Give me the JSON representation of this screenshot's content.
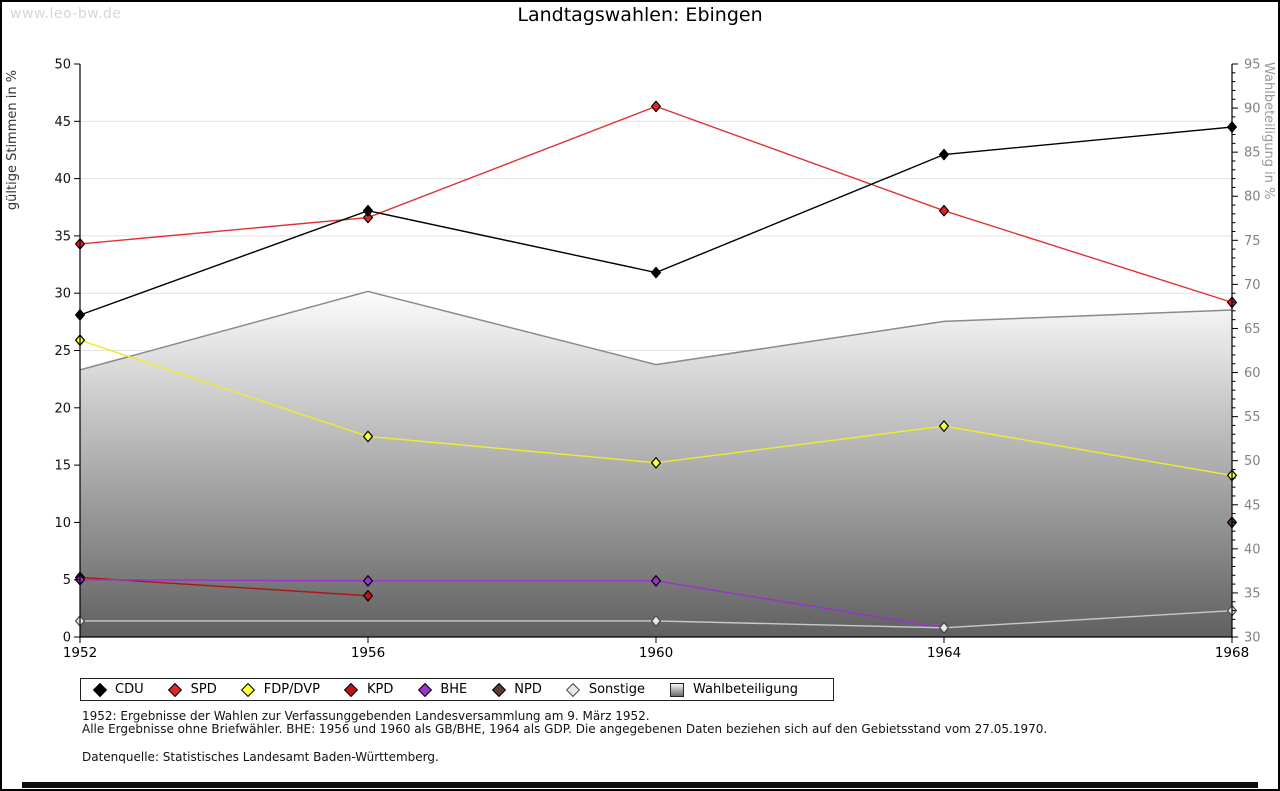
{
  "header": {
    "watermark": "www.leo-bw.de",
    "title": "Landtagswahlen: Ebingen"
  },
  "chart_data": {
    "type": "line",
    "x": [
      1952,
      1956,
      1960,
      1964,
      1968
    ],
    "left_axis": {
      "label": "gültige Stimmen in %",
      "min": 0,
      "max": 50,
      "step": 5
    },
    "right_axis": {
      "label": "Wahlbeteiligung in %",
      "min": 30,
      "max": 95,
      "step": 5,
      "minor_step": 1
    },
    "grid": true,
    "legend_position": "bottom",
    "series": [
      {
        "name": "Wahlbeteiligung",
        "type": "area",
        "axis": "right",
        "line_color": "#8a8a8a",
        "fill_top": "#fcfcfc",
        "fill_bottom": "#606060",
        "values": [
          60.3,
          69.2,
          60.9,
          65.8,
          67.1
        ]
      },
      {
        "name": "KPD",
        "type": "line",
        "axis": "left",
        "line_color": "#b11414",
        "marker_fill": "#c01414",
        "marker_stroke": "#000000",
        "values": [
          5.2,
          3.6,
          null,
          null,
          null
        ]
      },
      {
        "name": "BHE",
        "type": "line",
        "axis": "left",
        "line_color": "#9933cc",
        "marker_fill": "#9933cc",
        "marker_stroke": "#000000",
        "values": [
          5.0,
          4.9,
          4.9,
          0.8,
          null
        ]
      },
      {
        "name": "Sonstige",
        "type": "line",
        "axis": "left",
        "line_color": "#c9c9c9",
        "marker_fill": "#e8e8e8",
        "marker_stroke": "#4a4a4a",
        "values": [
          1.4,
          null,
          1.4,
          0.8,
          2.3
        ]
      },
      {
        "name": "NPD",
        "type": "line",
        "axis": "left",
        "line_color": "#5a3c30",
        "marker_fill": "#5a3c30",
        "marker_stroke": "#000000",
        "values": [
          null,
          null,
          null,
          null,
          10.0
        ]
      },
      {
        "name": "FDP/DVP",
        "type": "line",
        "axis": "left",
        "line_color": "#ecec30",
        "marker_fill": "#ffff38",
        "marker_stroke": "#000000",
        "values": [
          25.9,
          17.5,
          15.2,
          18.4,
          14.1
        ]
      },
      {
        "name": "SPD",
        "type": "line",
        "axis": "left",
        "line_color": "#e03333",
        "marker_fill": "#e02626",
        "marker_stroke": "#000000",
        "values": [
          34.3,
          36.6,
          46.3,
          37.2,
          29.2
        ]
      },
      {
        "name": "CDU",
        "type": "line",
        "axis": "left",
        "line_color": "#000000",
        "marker_fill": "#000000",
        "marker_stroke": "#000000",
        "values": [
          28.1,
          37.2,
          31.8,
          42.1,
          44.5
        ]
      }
    ],
    "legend_order": [
      "CDU",
      "SPD",
      "FDP/DVP",
      "KPD",
      "BHE",
      "NPD",
      "Sonstige",
      "Wahlbeteiligung"
    ]
  },
  "footnotes": {
    "line1": "1952: Ergebnisse der Wahlen zur Verfassunggebenden Landesversammlung am 9. März 1952.",
    "line2": "Alle Ergebnisse ohne Briefwähler. BHE: 1956 und 1960 als GB/BHE, 1964 als GDP. Die angegebenen Daten beziehen sich auf den Gebietsstand vom 27.05.1970.",
    "source": "Datenquelle: Statistisches Landesamt Baden-Württemberg."
  }
}
